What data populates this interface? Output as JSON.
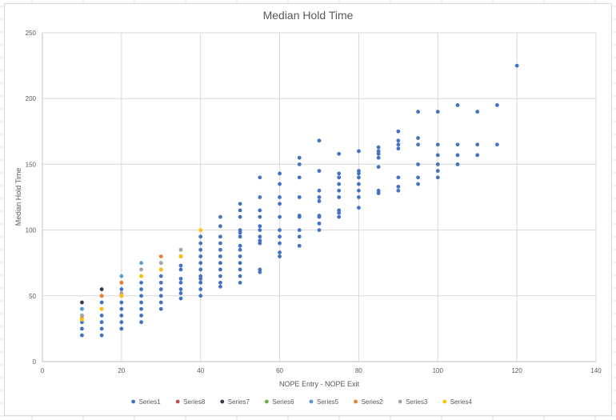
{
  "chart_data": {
    "type": "scatter",
    "title": "Median Hold Time",
    "xlabel": "NOPE Entry - NOPE Exit",
    "ylabel": "Median Hold Time",
    "xlim": [
      0,
      140
    ],
    "ylim": [
      0,
      250
    ],
    "x_ticks": [
      0,
      20,
      40,
      60,
      80,
      100,
      120,
      140
    ],
    "y_ticks": [
      0,
      50,
      100,
      150,
      200,
      250
    ],
    "grid": true,
    "legend_position": "bottom",
    "series": [
      {
        "name": "Series1",
        "color": "#4472c4",
        "points": [
          [
            10,
            20
          ],
          [
            10,
            25
          ],
          [
            10,
            30
          ],
          [
            10,
            35
          ],
          [
            10,
            40
          ],
          [
            15,
            20
          ],
          [
            15,
            25
          ],
          [
            15,
            30
          ],
          [
            15,
            35
          ],
          [
            15,
            40
          ],
          [
            15,
            45
          ],
          [
            20,
            25
          ],
          [
            20,
            30
          ],
          [
            20,
            35
          ],
          [
            20,
            40
          ],
          [
            20,
            45
          ],
          [
            20,
            50
          ],
          [
            20,
            55
          ],
          [
            25,
            30
          ],
          [
            25,
            35
          ],
          [
            25,
            40
          ],
          [
            25,
            45
          ],
          [
            25,
            50
          ],
          [
            25,
            55
          ],
          [
            25,
            60
          ],
          [
            30,
            40
          ],
          [
            30,
            45
          ],
          [
            30,
            50
          ],
          [
            30,
            55
          ],
          [
            30,
            60
          ],
          [
            30,
            65
          ],
          [
            30,
            70
          ],
          [
            35,
            48
          ],
          [
            35,
            52
          ],
          [
            35,
            55
          ],
          [
            35,
            60
          ],
          [
            35,
            63
          ],
          [
            35,
            70
          ],
          [
            35,
            73
          ],
          [
            35,
            80
          ],
          [
            40,
            50
          ],
          [
            40,
            55
          ],
          [
            40,
            60
          ],
          [
            40,
            63
          ],
          [
            40,
            65
          ],
          [
            40,
            70
          ],
          [
            40,
            75
          ],
          [
            40,
            80
          ],
          [
            40,
            85
          ],
          [
            40,
            90
          ],
          [
            40,
            95
          ],
          [
            45,
            57
          ],
          [
            45,
            60
          ],
          [
            45,
            65
          ],
          [
            45,
            70
          ],
          [
            45,
            75
          ],
          [
            45,
            80
          ],
          [
            45,
            85
          ],
          [
            45,
            90
          ],
          [
            45,
            95
          ],
          [
            45,
            103
          ],
          [
            45,
            110
          ],
          [
            50,
            60
          ],
          [
            50,
            65
          ],
          [
            50,
            70
          ],
          [
            50,
            75
          ],
          [
            50,
            80
          ],
          [
            50,
            85
          ],
          [
            50,
            88
          ],
          [
            50,
            95
          ],
          [
            50,
            98
          ],
          [
            50,
            100
          ],
          [
            50,
            110
          ],
          [
            50,
            115
          ],
          [
            50,
            120
          ],
          [
            55,
            68
          ],
          [
            55,
            70
          ],
          [
            55,
            90
          ],
          [
            55,
            92
          ],
          [
            55,
            95
          ],
          [
            55,
            100
          ],
          [
            55,
            103
          ],
          [
            55,
            110
          ],
          [
            55,
            115
          ],
          [
            55,
            125
          ],
          [
            55,
            140
          ],
          [
            60,
            80
          ],
          [
            60,
            83
          ],
          [
            60,
            90
          ],
          [
            60,
            95
          ],
          [
            60,
            100
          ],
          [
            60,
            110
          ],
          [
            60,
            120
          ],
          [
            60,
            125
          ],
          [
            60,
            135
          ],
          [
            60,
            143
          ],
          [
            65,
            88
          ],
          [
            65,
            95
          ],
          [
            65,
            100
          ],
          [
            65,
            110
          ],
          [
            65,
            111
          ],
          [
            65,
            125
          ],
          [
            65,
            140
          ],
          [
            65,
            150
          ],
          [
            65,
            155
          ],
          [
            70,
            100
          ],
          [
            70,
            105
          ],
          [
            70,
            110
          ],
          [
            70,
            111
          ],
          [
            70,
            122
          ],
          [
            70,
            125
          ],
          [
            70,
            130
          ],
          [
            70,
            145
          ],
          [
            70,
            168
          ],
          [
            75,
            110
          ],
          [
            75,
            113
          ],
          [
            75,
            115
          ],
          [
            75,
            125
          ],
          [
            75,
            130
          ],
          [
            75,
            135
          ],
          [
            75,
            140
          ],
          [
            75,
            143
          ],
          [
            75,
            158
          ],
          [
            80,
            117
          ],
          [
            80,
            125
          ],
          [
            80,
            130
          ],
          [
            80,
            135
          ],
          [
            80,
            140
          ],
          [
            80,
            143
          ],
          [
            80,
            145
          ],
          [
            80,
            160
          ],
          [
            85,
            128
          ],
          [
            85,
            130
          ],
          [
            85,
            148
          ],
          [
            85,
            155
          ],
          [
            85,
            158
          ],
          [
            85,
            160
          ],
          [
            85,
            163
          ],
          [
            90,
            130
          ],
          [
            90,
            133
          ],
          [
            90,
            140
          ],
          [
            90,
            162
          ],
          [
            90,
            165
          ],
          [
            90,
            168
          ],
          [
            90,
            175
          ],
          [
            95,
            135
          ],
          [
            95,
            140
          ],
          [
            95,
            150
          ],
          [
            95,
            165
          ],
          [
            95,
            170
          ],
          [
            95,
            190
          ],
          [
            100,
            140
          ],
          [
            100,
            145
          ],
          [
            100,
            150
          ],
          [
            100,
            157
          ],
          [
            100,
            165
          ],
          [
            100,
            190
          ],
          [
            105,
            150
          ],
          [
            105,
            157
          ],
          [
            105,
            165
          ],
          [
            105,
            195
          ],
          [
            110,
            157
          ],
          [
            110,
            165
          ],
          [
            110,
            190
          ],
          [
            115,
            165
          ],
          [
            115,
            195
          ],
          [
            120,
            225
          ]
        ]
      },
      {
        "name": "Series8",
        "color": "#c0504d",
        "points": [
          [
            15,
            50
          ],
          [
            20,
            60
          ]
        ]
      },
      {
        "name": "Series7",
        "color": "#2f3b4c",
        "points": [
          [
            10,
            45
          ],
          [
            15,
            55
          ]
        ]
      },
      {
        "name": "Series6",
        "color": "#70ad47",
        "points": []
      },
      {
        "name": "Series5",
        "color": "#5b9bd5",
        "points": [
          [
            10,
            40
          ],
          [
            20,
            65
          ],
          [
            25,
            75
          ],
          [
            30,
            75
          ],
          [
            35,
            85
          ]
        ]
      },
      {
        "name": "Series2",
        "color": "#ed7d31",
        "points": [
          [
            10,
            33
          ],
          [
            15,
            50
          ],
          [
            20,
            60
          ],
          [
            25,
            65
          ],
          [
            30,
            80
          ],
          [
            35,
            80
          ]
        ]
      },
      {
        "name": "Series3",
        "color": "#a5a5a5",
        "points": [
          [
            10,
            35
          ],
          [
            20,
            52
          ],
          [
            25,
            70
          ],
          [
            30,
            75
          ],
          [
            35,
            85
          ]
        ]
      },
      {
        "name": "Series4",
        "color": "#ffc000",
        "points": [
          [
            10,
            32
          ],
          [
            15,
            40
          ],
          [
            20,
            50
          ],
          [
            25,
            65
          ],
          [
            30,
            70
          ],
          [
            35,
            80
          ],
          [
            40,
            100
          ]
        ]
      }
    ]
  }
}
